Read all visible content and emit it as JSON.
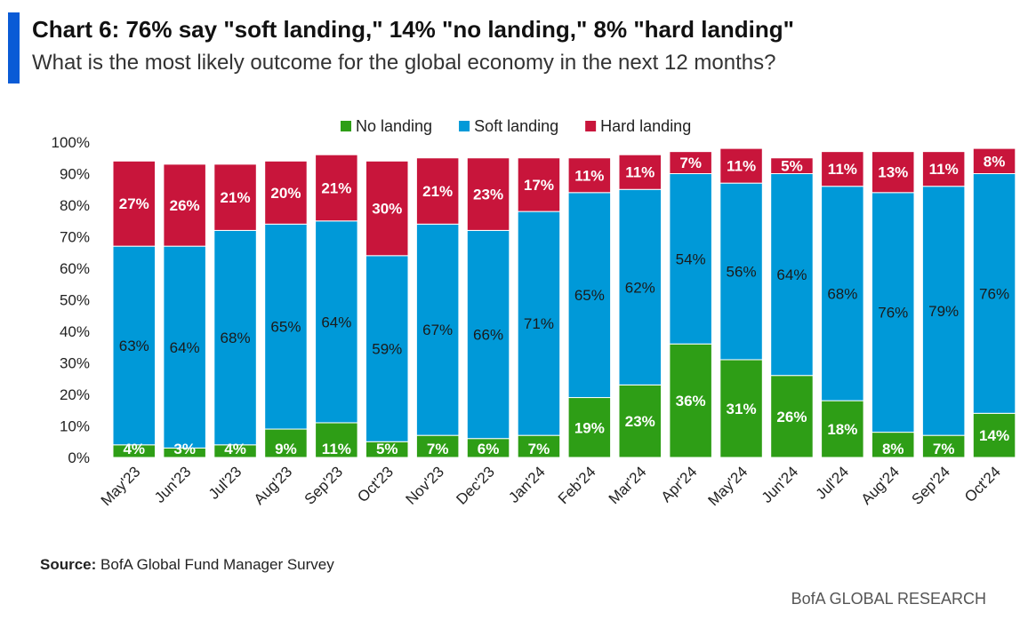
{
  "header": {
    "title": "Chart 6: 76% say \"soft landing,\" 14% \"no landing,\" 8% \"hard landing\"",
    "subtitle": "What is the most likely outcome for the global economy in the next 12 months?"
  },
  "footer": {
    "source_label": "Source:",
    "source_text": "BofA Global Fund Manager Survey",
    "brand": "BofA GLOBAL RESEARCH"
  },
  "colors": {
    "accent": "#0a5bd6",
    "no_landing": "#2e9e16",
    "soft_landing": "#0099d8",
    "hard_landing": "#c8153b"
  },
  "chart_data": {
    "type": "bar",
    "stacked": true,
    "categories": [
      "May'23",
      "Jun'23",
      "Jul'23",
      "Aug'23",
      "Sep'23",
      "Oct'23",
      "Nov'23",
      "Dec'23",
      "Jan'24",
      "Feb'24",
      "Mar'24",
      "Apr'24",
      "May'24",
      "Jun'24",
      "Jul'24",
      "Aug'24",
      "Sep'24",
      "Oct'24"
    ],
    "series": [
      {
        "name": "No landing",
        "color": "#2e9e16",
        "label_color": "#ffffff",
        "values": [
          4,
          3,
          4,
          9,
          11,
          5,
          7,
          6,
          7,
          19,
          23,
          36,
          31,
          26,
          18,
          8,
          7,
          14
        ]
      },
      {
        "name": "Soft landing",
        "color": "#0099d8",
        "label_color": "#1a1a1a",
        "values": [
          63,
          64,
          68,
          65,
          64,
          59,
          67,
          66,
          71,
          65,
          62,
          54,
          56,
          64,
          68,
          76,
          79,
          76
        ]
      },
      {
        "name": "Hard landing",
        "color": "#c8153b",
        "label_color": "#ffffff",
        "values": [
          27,
          26,
          21,
          20,
          21,
          30,
          21,
          23,
          17,
          11,
          11,
          7,
          11,
          5,
          11,
          13,
          11,
          8
        ]
      }
    ],
    "ylim": [
      0,
      100
    ],
    "yticks": [
      "0%",
      "10%",
      "20%",
      "30%",
      "40%",
      "50%",
      "60%",
      "70%",
      "80%",
      "90%",
      "100%"
    ],
    "grid": false,
    "legend": "top-center"
  }
}
